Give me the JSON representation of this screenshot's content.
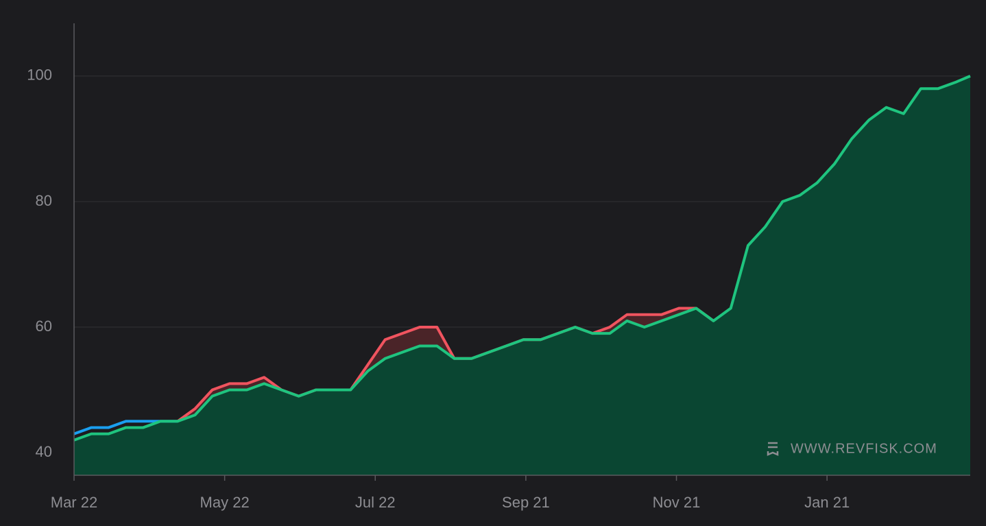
{
  "chart_data": {
    "type": "line",
    "watermark": "WWW.REVFISK.COM",
    "x": [
      0,
      7,
      14,
      21,
      28,
      35,
      42,
      49,
      56,
      63,
      70,
      77,
      84,
      91,
      98,
      105,
      112,
      119,
      126,
      133,
      140,
      147,
      154,
      161,
      168,
      175,
      182,
      189,
      196,
      203,
      210,
      217,
      224,
      231,
      238,
      245,
      252,
      259,
      266,
      273,
      280,
      287,
      294,
      301,
      308,
      315,
      322,
      329,
      336,
      343,
      350,
      357,
      363
    ],
    "xlim": [
      0,
      363
    ],
    "xticks": [
      {
        "value": 0,
        "label": "Mar 22"
      },
      {
        "value": 61,
        "label": "May 22"
      },
      {
        "value": 122,
        "label": "Jul 22"
      },
      {
        "value": 183,
        "label": "Sep 21"
      },
      {
        "value": 244,
        "label": "Nov 21"
      },
      {
        "value": 305,
        "label": "Jan 21"
      }
    ],
    "ylim": [
      36.4,
      108.4
    ],
    "yticks": [
      40,
      60,
      80,
      100
    ],
    "grid": true,
    "series": [
      {
        "color": "#1a9ff0",
        "area": false,
        "values": [
          43,
          44,
          44,
          45,
          45,
          45,
          45,
          null,
          null,
          null,
          null,
          null,
          null,
          null,
          null,
          null,
          null,
          null,
          null,
          null,
          null,
          null,
          null,
          null,
          null,
          null,
          null,
          null,
          null,
          null,
          null,
          null,
          null,
          null,
          null,
          null,
          null,
          null,
          null,
          null,
          null,
          null,
          null,
          null,
          null,
          null,
          null,
          null,
          null,
          null,
          null,
          null,
          null
        ]
      },
      {
        "color": "#f0545f",
        "area": true,
        "area_color": "#4a2428",
        "values": [
          null,
          null,
          null,
          null,
          null,
          null,
          45,
          47,
          50,
          51,
          51,
          52,
          50,
          49,
          50,
          50,
          50,
          54,
          58,
          59,
          60,
          60,
          55,
          55,
          56,
          57,
          58,
          58,
          59,
          60,
          59,
          60,
          62,
          62,
          62,
          63,
          63,
          61,
          null,
          null,
          null,
          null,
          null,
          null,
          null,
          null,
          null,
          null,
          null,
          null,
          null,
          null,
          null
        ]
      },
      {
        "color": "#1fc47f",
        "area": true,
        "area_color": "#0a4632",
        "values": [
          42,
          43,
          43,
          44,
          44,
          45,
          45,
          46,
          49,
          50,
          50,
          51,
          50,
          49,
          50,
          50,
          50,
          53,
          55,
          56,
          57,
          57,
          55,
          55,
          56,
          57,
          58,
          58,
          59,
          60,
          59,
          59,
          61,
          60,
          61,
          62,
          63,
          61,
          63,
          73,
          76,
          80,
          81,
          83,
          86,
          90,
          93,
          95,
          94,
          98,
          98,
          99,
          100
        ]
      }
    ]
  }
}
